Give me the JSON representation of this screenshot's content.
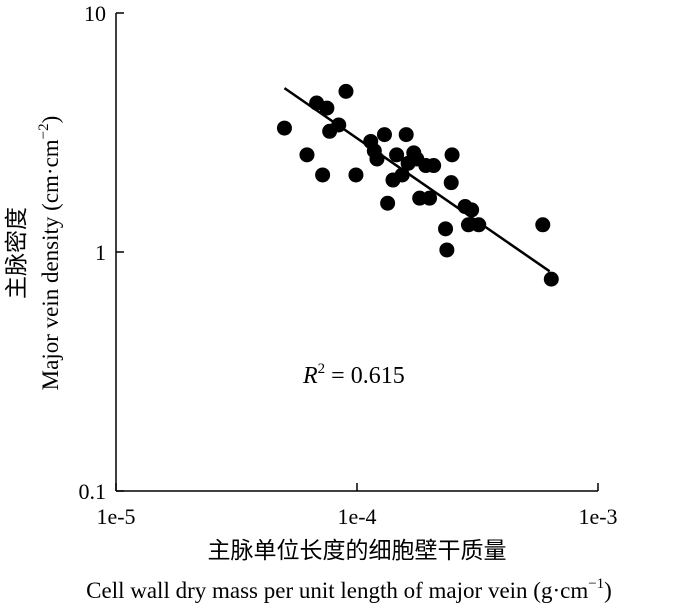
{
  "chart_data": {
    "type": "scatter",
    "xscale": "log",
    "yscale": "log",
    "xlim": [
      1e-05,
      0.001
    ],
    "ylim": [
      0.1,
      10
    ],
    "xticks": [
      "1e-5",
      "1e-4",
      "1e-3"
    ],
    "yticks": [
      "0.1",
      "1",
      "10"
    ],
    "xlabel_cn": "主脉单位长度的细胞壁干质量",
    "xlabel_en": "Cell wall dry mass per unit length of major vein (g·cm",
    "xlabel_en_sup": "−1",
    "xlabel_en_tail": ")",
    "ylabel_cn": "主脉密度",
    "ylabel_en": "Major vein density (cm·cm",
    "ylabel_en_sup": "−2",
    "ylabel_en_tail": ")",
    "annotation": {
      "r_symbol": "R",
      "r_exp": "2",
      "r_value": " = 0.615"
    },
    "fit_line": {
      "x": [
        5e-05,
        0.00063
      ],
      "y": [
        4.85,
        0.83
      ]
    },
    "points": [
      {
        "x": 5e-05,
        "y": 3.3
      },
      {
        "x": 6.2e-05,
        "y": 2.55
      },
      {
        "x": 6.8e-05,
        "y": 4.2
      },
      {
        "x": 7.2e-05,
        "y": 2.1
      },
      {
        "x": 7.5e-05,
        "y": 4.0
      },
      {
        "x": 7.7e-05,
        "y": 3.2
      },
      {
        "x": 8.4e-05,
        "y": 3.4
      },
      {
        "x": 9e-05,
        "y": 4.7
      },
      {
        "x": 9.9e-05,
        "y": 2.1
      },
      {
        "x": 0.000114,
        "y": 2.9
      },
      {
        "x": 0.000118,
        "y": 2.65
      },
      {
        "x": 0.000121,
        "y": 2.45
      },
      {
        "x": 0.00013,
        "y": 3.1
      },
      {
        "x": 0.000134,
        "y": 1.6
      },
      {
        "x": 0.000141,
        "y": 2.0
      },
      {
        "x": 0.000146,
        "y": 2.55
      },
      {
        "x": 0.000154,
        "y": 2.1
      },
      {
        "x": 0.00016,
        "y": 3.1
      },
      {
        "x": 0.000163,
        "y": 2.35
      },
      {
        "x": 0.000172,
        "y": 2.6
      },
      {
        "x": 0.000177,
        "y": 2.45
      },
      {
        "x": 0.000182,
        "y": 1.68
      },
      {
        "x": 0.000193,
        "y": 2.3
      },
      {
        "x": 0.0002,
        "y": 1.68
      },
      {
        "x": 0.000208,
        "y": 2.3
      },
      {
        "x": 0.000233,
        "y": 1.25
      },
      {
        "x": 0.000236,
        "y": 1.02
      },
      {
        "x": 0.000246,
        "y": 1.95
      },
      {
        "x": 0.000248,
        "y": 2.55
      },
      {
        "x": 0.000281,
        "y": 1.55
      },
      {
        "x": 0.00029,
        "y": 1.3
      },
      {
        "x": 0.000299,
        "y": 1.5
      },
      {
        "x": 0.00032,
        "y": 1.3
      },
      {
        "x": 0.00059,
        "y": 1.3
      },
      {
        "x": 0.00064,
        "y": 0.77
      }
    ]
  }
}
